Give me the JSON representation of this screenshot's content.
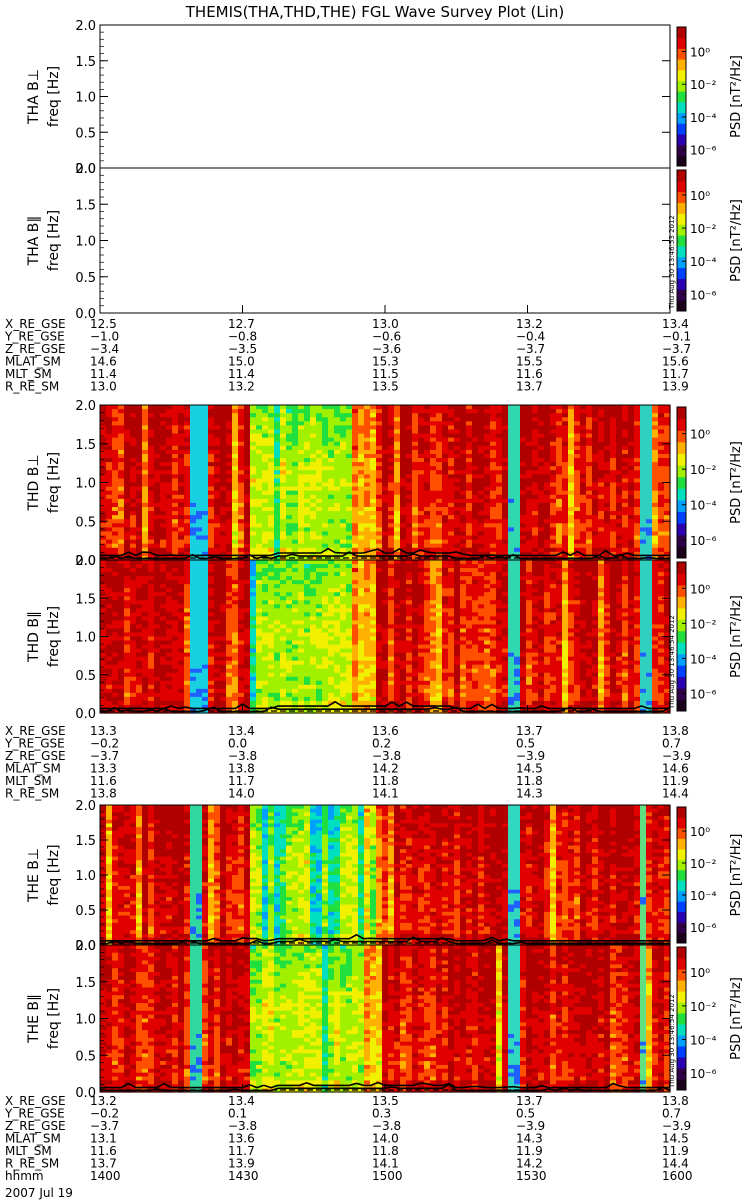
{
  "title": "THEMIS(THA,THD,THE) FGL Wave Survey Plot (Lin)",
  "panels": [
    {
      "ylabel_probe": "THA B⊥",
      "ylabel_freq": "freq [Hz]",
      "has_data": false,
      "variant": "a"
    },
    {
      "ylabel_probe": "THA B∥",
      "ylabel_freq": "freq [Hz]",
      "has_data": false,
      "variant": "a",
      "stamp": "Thu Aug 30 13:46:53 2012"
    },
    {
      "ylabel_probe": "THD B⊥",
      "ylabel_freq": "freq [Hz]",
      "has_data": true,
      "variant": "d"
    },
    {
      "ylabel_probe": "THD B∥",
      "ylabel_freq": "freq [Hz]",
      "has_data": true,
      "variant": "d",
      "stamp": "Thu Aug 30 13:46:54 2012"
    },
    {
      "ylabel_probe": "THE B⊥",
      "ylabel_freq": "freq [Hz]",
      "has_data": true,
      "variant": "e"
    },
    {
      "ylabel_probe": "THE B∥",
      "ylabel_freq": "freq [Hz]",
      "has_data": true,
      "variant": "e",
      "stamp": "Thu Aug 30 13:46:54 2012"
    }
  ],
  "chart_data": {
    "type": "heatmap",
    "yticks": [
      "0.0",
      "0.5",
      "1.0",
      "1.5",
      "2.0"
    ],
    "ylim": [
      0,
      2.0
    ],
    "colorbar": {
      "label": "PSD [nT²/Hz]",
      "ticks": [
        "10⁰",
        "10⁻²",
        "10⁻⁴",
        "10⁻⁶"
      ],
      "log_range": [
        -7,
        1.5
      ]
    },
    "colormap": [
      "#1a001a",
      "#30004a",
      "#2a00b0",
      "#0040ff",
      "#00a0ff",
      "#00e0c0",
      "#20e040",
      "#a0f000",
      "#f0f000",
      "#ffb000",
      "#ff5000",
      "#e00000",
      "#b00000"
    ],
    "time_axis": {
      "start": "1400",
      "end": "1600",
      "ticks": [
        "1400",
        "1430",
        "1500",
        "1530",
        "1600"
      ]
    }
  },
  "ephemeris": [
    {
      "probe": "THA",
      "rows": [
        {
          "label": "X_RE_GSE",
          "values": [
            "12.5",
            "12.7",
            "13.0",
            "13.2",
            "13.4"
          ]
        },
        {
          "label": "Y_RE_GSE",
          "values": [
            "-1.0",
            "-0.8",
            "-0.6",
            "-0.4",
            "-0.1"
          ]
        },
        {
          "label": "Z_RE_GSE",
          "values": [
            "-3.4",
            "-3.5",
            "-3.6",
            "-3.7",
            "-3.7"
          ]
        },
        {
          "label": "MLAT_SM",
          "values": [
            "14.6",
            "15.0",
            "15.3",
            "15.5",
            "15.6"
          ]
        },
        {
          "label": "MLT_SM",
          "values": [
            "11.4",
            "11.4",
            "11.5",
            "11.6",
            "11.7"
          ]
        },
        {
          "label": "R_RE_SM",
          "values": [
            "13.0",
            "13.2",
            "13.5",
            "13.7",
            "13.9"
          ]
        }
      ]
    },
    {
      "probe": "THD",
      "rows": [
        {
          "label": "X_RE_GSE",
          "values": [
            "13.3",
            "13.4",
            "13.6",
            "13.7",
            "13.8"
          ]
        },
        {
          "label": "Y_RE_GSE",
          "values": [
            "-0.2",
            "0.0",
            "0.2",
            "0.5",
            "0.7"
          ]
        },
        {
          "label": "Z_RE_GSE",
          "values": [
            "-3.7",
            "-3.8",
            "-3.8",
            "-3.9",
            "-3.9"
          ]
        },
        {
          "label": "MLAT_SM",
          "values": [
            "13.3",
            "13.8",
            "14.2",
            "14.5",
            "14.6"
          ]
        },
        {
          "label": "MLT_SM",
          "values": [
            "11.6",
            "11.7",
            "11.8",
            "11.8",
            "11.9"
          ]
        },
        {
          "label": "R_RE_SM",
          "values": [
            "13.8",
            "14.0",
            "14.1",
            "14.3",
            "14.4"
          ]
        }
      ]
    },
    {
      "probe": "THE",
      "rows": [
        {
          "label": "X_RE_GSE",
          "values": [
            "13.2",
            "13.4",
            "13.5",
            "13.7",
            "13.8"
          ]
        },
        {
          "label": "Y_RE_GSE",
          "values": [
            "-0.2",
            "0.1",
            "0.3",
            "0.5",
            "0.7"
          ]
        },
        {
          "label": "Z_RE_GSE",
          "values": [
            "-3.7",
            "-3.8",
            "-3.8",
            "-3.9",
            "-3.9"
          ]
        },
        {
          "label": "MLAT_SM",
          "values": [
            "13.1",
            "13.6",
            "14.0",
            "14.3",
            "14.5"
          ]
        },
        {
          "label": "MLT_SM",
          "values": [
            "11.6",
            "11.7",
            "11.8",
            "11.9",
            "11.9"
          ]
        },
        {
          "label": "R_RE_SM",
          "values": [
            "13.7",
            "13.9",
            "14.1",
            "14.2",
            "14.4"
          ]
        },
        {
          "label": "hhmm",
          "values": [
            "1400",
            "1430",
            "1500",
            "1530",
            "1600"
          ]
        }
      ]
    }
  ],
  "date_label": "2007 Jul 19"
}
